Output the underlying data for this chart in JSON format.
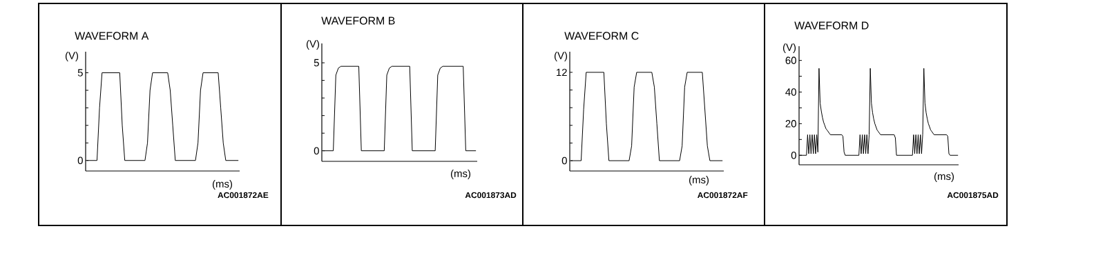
{
  "chart_data": [
    {
      "type": "line",
      "title": "WAVEFORM A",
      "xlabel": "(ms)",
      "ylabel": "(V)",
      "annotations": [
        "AC001872AE"
      ],
      "color": "#000000",
      "tick_labels": "y",
      "categories": [
        null,
        null,
        null,
        null,
        null,
        null,
        null,
        null,
        null,
        null,
        null,
        null,
        null,
        null,
        null,
        null,
        null,
        null,
        null,
        null,
        null,
        null,
        null,
        null,
        null,
        null,
        null,
        null,
        null,
        null,
        null,
        null,
        null,
        null,
        null,
        null,
        null,
        null,
        null,
        null,
        null,
        null,
        null,
        null,
        null,
        null,
        null,
        null,
        null,
        null,
        null,
        null,
        null,
        null,
        null,
        null,
        null,
        null,
        null,
        null,
        null
      ],
      "values": [
        0,
        0,
        0,
        0,
        0,
        3,
        5,
        5,
        5,
        5,
        5,
        5,
        5,
        5,
        2,
        0,
        0,
        0,
        0,
        0,
        0,
        0,
        0,
        0,
        1,
        4,
        5,
        5,
        5,
        5,
        5,
        5,
        5,
        4,
        2,
        0,
        0,
        0,
        0,
        0,
        0,
        0,
        0,
        0,
        1,
        4,
        5,
        5,
        5,
        5,
        5,
        5,
        5,
        3,
        1,
        0,
        0,
        0,
        0,
        0,
        0
      ],
      "ylim": [
        -0.6,
        6.2
      ],
      "yticks": [
        0,
        {
          "value": 1,
          "label": null
        },
        {
          "value": 2,
          "label": null
        },
        {
          "value": 3,
          "label": null
        },
        {
          "value": 4,
          "label": null
        },
        5
      ]
    },
    {
      "type": "line",
      "title": "WAVEFORM B",
      "xlabel": "(ms)",
      "ylabel": "(V)",
      "annotations": [
        "AC001873AD"
      ],
      "color": "#000000",
      "tick_labels": "y",
      "categories": [
        null,
        null,
        null,
        null,
        null,
        null,
        null,
        null,
        null,
        null,
        null,
        null,
        null,
        null,
        null,
        null,
        null,
        null,
        null,
        null,
        null,
        null,
        null,
        null,
        null,
        null,
        null,
        null,
        null,
        null,
        null,
        null,
        null,
        null,
        null,
        null,
        null,
        null,
        null,
        null,
        null,
        null,
        null,
        null,
        null,
        null,
        null,
        null,
        null,
        null,
        null,
        null,
        null,
        null,
        null,
        null,
        null,
        null,
        null,
        null,
        null
      ],
      "values": [
        0,
        0,
        0,
        0,
        0,
        4.3,
        4.7,
        4.8,
        4.8,
        4.8,
        4.8,
        4.8,
        4.8,
        4.8,
        4.8,
        0,
        0,
        0,
        0,
        0,
        0,
        0,
        0,
        0,
        0,
        4.3,
        4.7,
        4.8,
        4.8,
        4.8,
        4.8,
        4.8,
        4.8,
        4.8,
        4.8,
        0,
        0,
        0,
        0,
        0,
        0,
        0,
        0,
        0,
        0,
        4.3,
        4.7,
        4.8,
        4.8,
        4.8,
        4.8,
        4.8,
        4.8,
        4.8,
        4.8,
        4.8,
        0,
        0,
        0,
        0,
        0
      ],
      "ylim": [
        -0.6,
        6.1
      ],
      "yticks": [
        0,
        {
          "value": 1,
          "label": null
        },
        {
          "value": 2,
          "label": null
        },
        {
          "value": 3,
          "label": null
        },
        {
          "value": 4,
          "label": null
        },
        5
      ]
    },
    {
      "type": "line",
      "title": "WAVEFORM C",
      "xlabel": "(ms)",
      "ylabel": "(V)",
      "annotations": [
        "AC001872AF"
      ],
      "color": "#000000",
      "tick_labels": "y",
      "categories": [
        null,
        null,
        null,
        null,
        null,
        null,
        null,
        null,
        null,
        null,
        null,
        null,
        null,
        null,
        null,
        null,
        null,
        null,
        null,
        null,
        null,
        null,
        null,
        null,
        null,
        null,
        null,
        null,
        null,
        null,
        null,
        null,
        null,
        null,
        null,
        null,
        null,
        null,
        null,
        null,
        null,
        null,
        null,
        null,
        null,
        null,
        null,
        null,
        null,
        null,
        null,
        null,
        null,
        null,
        null,
        null,
        null,
        null,
        null,
        null,
        null
      ],
      "values": [
        0,
        0,
        0,
        0,
        0,
        7,
        12,
        12,
        12,
        12,
        12,
        12,
        12,
        12,
        5,
        0,
        0,
        0,
        0,
        0,
        0,
        0,
        0,
        0,
        2,
        10,
        12,
        12,
        12,
        12,
        12,
        12,
        12,
        10,
        5,
        0,
        0,
        0,
        0,
        0,
        0,
        0,
        0,
        0,
        2,
        10,
        12,
        12,
        12,
        12,
        12,
        12,
        12,
        7,
        2,
        0,
        0,
        0,
        0,
        0,
        0
      ],
      "ylim": [
        -1.4,
        14.8
      ],
      "yticks": [
        0,
        {
          "value": 2.4,
          "label": null
        },
        {
          "value": 4.8,
          "label": null
        },
        {
          "value": 7.2,
          "label": null
        },
        {
          "value": 9.6,
          "label": null
        },
        12
      ]
    },
    {
      "type": "line",
      "title": "WAVEFORM D",
      "xlabel": "(ms)",
      "ylabel": "(V)",
      "annotations": [
        "AC001875AD"
      ],
      "color": "#000000",
      "tick_labels": "y",
      "categories": [
        null,
        null,
        null,
        null,
        null,
        null,
        null,
        null,
        null,
        null,
        null,
        null,
        null,
        null,
        null,
        null,
        null,
        null,
        null,
        null,
        null,
        null,
        null,
        null,
        null,
        null,
        null,
        null,
        null,
        null,
        null,
        null,
        null,
        null,
        null,
        null,
        null,
        null,
        null,
        null,
        null,
        null,
        null,
        null,
        null,
        null,
        null,
        null,
        null,
        null,
        null,
        null,
        null,
        null,
        null,
        null,
        null,
        null,
        null,
        null,
        null,
        null,
        null,
        null,
        null,
        null,
        null,
        null,
        null,
        null,
        null,
        null,
        null,
        null,
        null,
        null,
        null,
        null,
        null,
        null,
        null,
        null,
        null,
        null,
        null,
        null,
        null,
        null,
        null,
        null,
        null,
        null,
        null,
        null,
        null,
        null,
        null,
        null,
        null,
        null,
        null,
        null,
        null,
        null,
        null,
        null,
        null,
        null,
        null,
        null,
        null,
        null,
        null,
        null,
        null,
        null,
        null,
        null,
        null,
        null,
        null,
        null,
        null,
        null,
        null,
        null,
        null,
        null,
        null,
        null,
        null,
        null,
        null,
        null,
        null,
        null,
        null,
        null,
        null,
        null
      ],
      "values": [
        0,
        0,
        0,
        0,
        0,
        0,
        0,
        13,
        1,
        13,
        1,
        13,
        1,
        13,
        1,
        13,
        2,
        55,
        33,
        28,
        24,
        21,
        19,
        17,
        16,
        15,
        14,
        13,
        13,
        13,
        13,
        13,
        13,
        13,
        13,
        13,
        13,
        13,
        12,
        2,
        0,
        0,
        0,
        0,
        0,
        0,
        0,
        0,
        0,
        0,
        0,
        0,
        0,
        13,
        1,
        13,
        1,
        13,
        1,
        13,
        1,
        13,
        55,
        33,
        27,
        23,
        20,
        18,
        16,
        15,
        14,
        13,
        13,
        13,
        13,
        13,
        13,
        13,
        13,
        13,
        13,
        13,
        13,
        13,
        11,
        0,
        0,
        0,
        0,
        0,
        0,
        0,
        0,
        0,
        0,
        0,
        0,
        0,
        0,
        0,
        13,
        1,
        13,
        1,
        13,
        1,
        13,
        1,
        13,
        55,
        33,
        27,
        23,
        20,
        18,
        16,
        15,
        14,
        13,
        13,
        13,
        13,
        13,
        13,
        13,
        13,
        13,
        13,
        13,
        13,
        12,
        1,
        0,
        0,
        0,
        0,
        0,
        0,
        0,
        0
      ],
      "ylim": [
        -6,
        69
      ],
      "yticks": [
        0,
        {
          "value": 10,
          "label": null
        },
        20,
        {
          "value": 30,
          "label": null
        },
        40,
        {
          "value": 50,
          "label": null
        },
        60
      ]
    }
  ]
}
